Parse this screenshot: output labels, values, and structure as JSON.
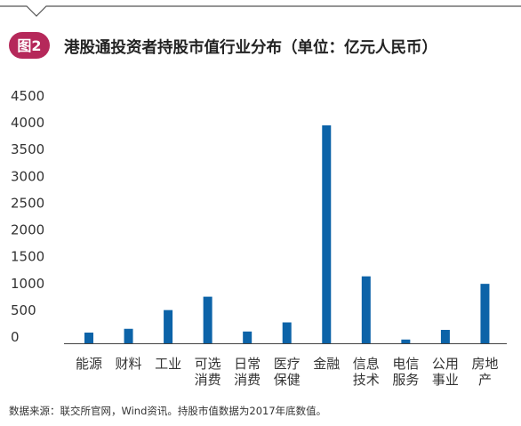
{
  "figure_label": "图2",
  "chart_data": {
    "type": "bar",
    "title": "港股通投资者持股市值行业分布（单位：亿元人民币）",
    "xlabel": "",
    "ylabel": "",
    "ylim": [
      0,
      4500
    ],
    "yticks": [
      0,
      500,
      1000,
      1500,
      2000,
      2500,
      3000,
      3500,
      4000,
      4500
    ],
    "categories": [
      [
        "能源"
      ],
      [
        "财料"
      ],
      [
        "工业"
      ],
      [
        "可选",
        "消费"
      ],
      [
        "日常",
        "消费"
      ],
      [
        "医疗",
        "保健"
      ],
      [
        "金融"
      ],
      [
        "信息",
        "技术"
      ],
      [
        "电信",
        "服务"
      ],
      [
        "公用",
        "事业"
      ],
      [
        "房地",
        "产"
      ]
    ],
    "values": [
      200,
      270,
      620,
      870,
      220,
      390,
      4070,
      1250,
      70,
      250,
      1110
    ],
    "bar_color": "#0c63a8",
    "grid": false
  },
  "source_note": "数据来源：联交所官网，Wind资讯。持股市值数据为2017年底数值。",
  "colors": {
    "badge": "#b5285a",
    "axis": "#444444",
    "frame": "#555555"
  }
}
